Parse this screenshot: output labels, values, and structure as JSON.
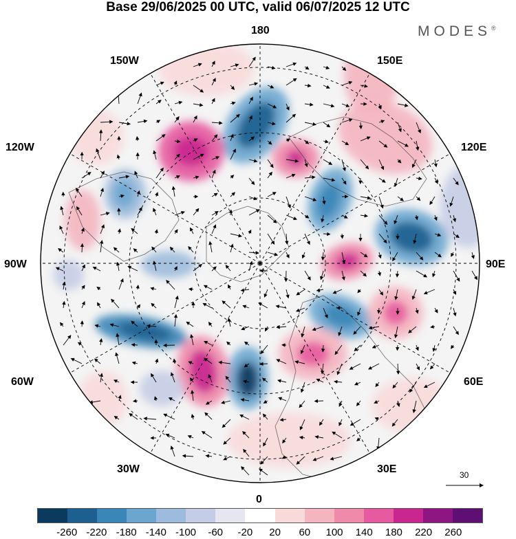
{
  "header": {
    "title": "Base 29/06/2025 00 UTC, valid 06/07/2025 12 UTC",
    "brand": "MODES",
    "brand_mark": "®"
  },
  "map": {
    "projection": "polar-stereographic-north",
    "longitude_labels": {
      "top": "180",
      "top_left": "150W",
      "top_right": "150E",
      "upper_left": "120W",
      "upper_right": "120E",
      "left": "90W",
      "right": "90E",
      "lower_left": "60W",
      "lower_right": "60E",
      "bottom_left": "30W",
      "bottom_right": "30E",
      "bottom": "0"
    },
    "reference_vector": {
      "label": "30"
    }
  },
  "colorbar": {
    "colors": [
      "#0a3a5e",
      "#1d5f8f",
      "#3b86b8",
      "#6ca6cf",
      "#9dbbdc",
      "#c5cde6",
      "#e6e6f1",
      "#ffffff",
      "#f8dada",
      "#f4b5c0",
      "#f08aab",
      "#e65a9f",
      "#c9268f",
      "#8e1683",
      "#5e0f73"
    ],
    "ticks": [
      "-260",
      "-220",
      "-180",
      "-140",
      "-100",
      "-60",
      "-20",
      "20",
      "60",
      "100",
      "140",
      "180",
      "220",
      "260"
    ]
  }
}
